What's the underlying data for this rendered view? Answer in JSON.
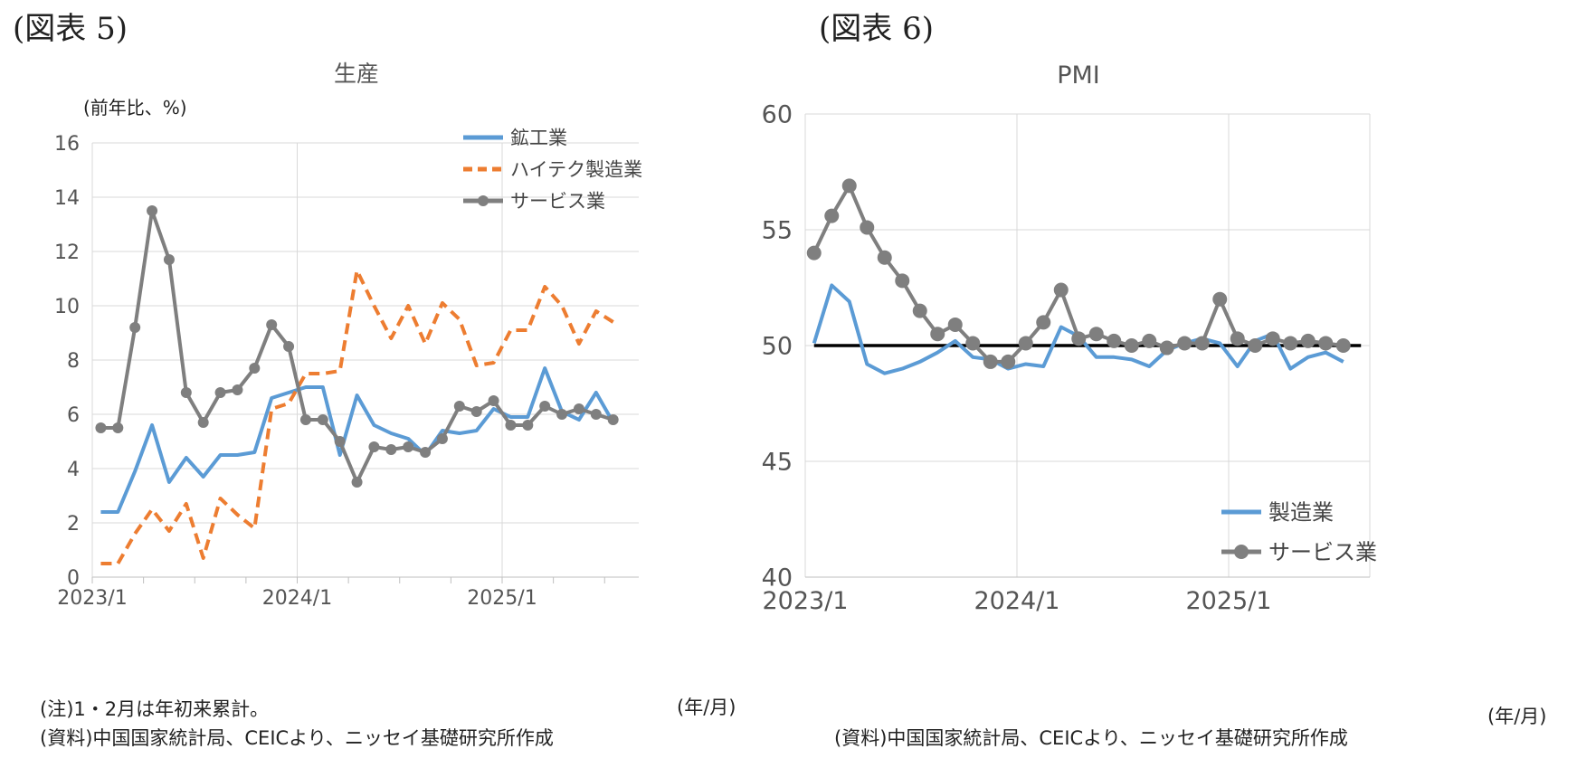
{
  "left": {
    "figure_label": "(図表 5)",
    "ylabel": "(前年比、%)",
    "xunit": "(年/月)",
    "notes": [
      "(注)1・2月は年初来累計。",
      "(資料)中国国家統計局、CEICより、ニッセイ基礎研究所作成"
    ]
  },
  "right": {
    "figure_label": "(図表 6)",
    "xunit": "(年/月)",
    "notes": [
      "(資料)中国国家統計局、CEICより、ニッセイ基礎研究所作成"
    ]
  },
  "chart_data": [
    {
      "type": "line",
      "title": "生産",
      "ylim": [
        0,
        16
      ],
      "yticks": [
        0,
        2,
        4,
        6,
        8,
        10,
        12,
        14,
        16
      ],
      "xtick_labels": [
        "2023/1",
        "2024/1",
        "2025/1"
      ],
      "x": [
        "2023/1",
        "2023/2",
        "2023/3",
        "2023/4",
        "2023/5",
        "2023/6",
        "2023/7",
        "2023/8",
        "2023/9",
        "2023/10",
        "2023/11",
        "2023/12",
        "2024/1",
        "2024/2",
        "2024/3",
        "2024/4",
        "2024/5",
        "2024/6",
        "2024/7",
        "2024/8",
        "2024/9",
        "2024/10",
        "2024/11",
        "2024/12",
        "2025/1",
        "2025/2",
        "2025/3",
        "2025/4",
        "2025/5",
        "2025/6",
        "2025/7",
        "2025/8"
      ],
      "grid": true,
      "legend": "top-right",
      "series": [
        {
          "name": "鉱工業",
          "color": "#5b9bd5",
          "style": "solid",
          "values": [
            2.4,
            2.4,
            3.9,
            5.6,
            3.5,
            4.4,
            3.7,
            4.5,
            4.5,
            4.6,
            6.6,
            6.8,
            7.0,
            7.0,
            4.5,
            6.7,
            5.6,
            5.3,
            5.1,
            4.5,
            5.4,
            5.3,
            5.4,
            6.2,
            5.9,
            5.9,
            7.7,
            6.1,
            5.8,
            6.8,
            5.7,
            null
          ]
        },
        {
          "name": "ハイテク製造業",
          "color": "#ed7d31",
          "style": "dashed",
          "values": [
            0.5,
            0.5,
            1.6,
            2.5,
            1.7,
            2.7,
            0.7,
            2.9,
            2.3,
            1.8,
            6.2,
            6.4,
            7.5,
            7.5,
            7.6,
            11.3,
            10.0,
            8.8,
            10.0,
            8.6,
            10.1,
            9.5,
            7.8,
            7.9,
            9.1,
            9.1,
            10.7,
            10.0,
            8.6,
            9.8,
            9.4,
            null
          ]
        },
        {
          "name": "サービス業",
          "color": "#7f7f7f",
          "style": "marker",
          "values": [
            5.5,
            5.5,
            9.2,
            13.5,
            11.7,
            6.8,
            5.7,
            6.8,
            6.9,
            7.7,
            9.3,
            8.5,
            5.8,
            5.8,
            5.0,
            3.5,
            4.8,
            4.7,
            4.8,
            4.6,
            5.1,
            6.3,
            6.1,
            6.5,
            5.6,
            5.6,
            6.3,
            6.0,
            6.2,
            6.0,
            5.8,
            null
          ]
        }
      ]
    },
    {
      "type": "line",
      "title": "PMI",
      "ylim": [
        40,
        60
      ],
      "yticks": [
        40,
        45,
        50,
        55,
        60
      ],
      "xtick_labels": [
        "2023/1",
        "2024/1",
        "2025/1"
      ],
      "x": [
        "2023/1",
        "2023/2",
        "2023/3",
        "2023/4",
        "2023/5",
        "2023/6",
        "2023/7",
        "2023/8",
        "2023/9",
        "2023/10",
        "2023/11",
        "2023/12",
        "2024/1",
        "2024/2",
        "2024/3",
        "2024/4",
        "2024/5",
        "2024/6",
        "2024/7",
        "2024/8",
        "2024/9",
        "2024/10",
        "2024/11",
        "2024/12",
        "2025/1",
        "2025/2",
        "2025/3",
        "2025/4",
        "2025/5",
        "2025/6",
        "2025/7",
        "2025/8"
      ],
      "grid": true,
      "legend": "bottom-right",
      "reference_line": 50,
      "series": [
        {
          "name": "製造業",
          "color": "#5b9bd5",
          "style": "solid",
          "values": [
            50.1,
            52.6,
            51.9,
            49.2,
            48.8,
            49.0,
            49.3,
            49.7,
            50.2,
            49.5,
            49.4,
            49.0,
            49.2,
            49.1,
            50.8,
            50.4,
            49.5,
            49.5,
            49.4,
            49.1,
            49.8,
            50.1,
            50.3,
            50.1,
            49.1,
            50.2,
            50.5,
            49.0,
            49.5,
            49.7,
            49.3,
            null
          ]
        },
        {
          "name": "サービス業",
          "color": "#7f7f7f",
          "style": "marker",
          "values": [
            54.0,
            55.6,
            56.9,
            55.1,
            53.8,
            52.8,
            51.5,
            50.5,
            50.9,
            50.1,
            49.3,
            49.3,
            50.1,
            51.0,
            52.4,
            50.3,
            50.5,
            50.2,
            50.0,
            50.2,
            49.9,
            50.1,
            50.1,
            52.0,
            50.3,
            50.0,
            50.3,
            50.1,
            50.2,
            50.1,
            50.0,
            null
          ]
        }
      ]
    }
  ]
}
